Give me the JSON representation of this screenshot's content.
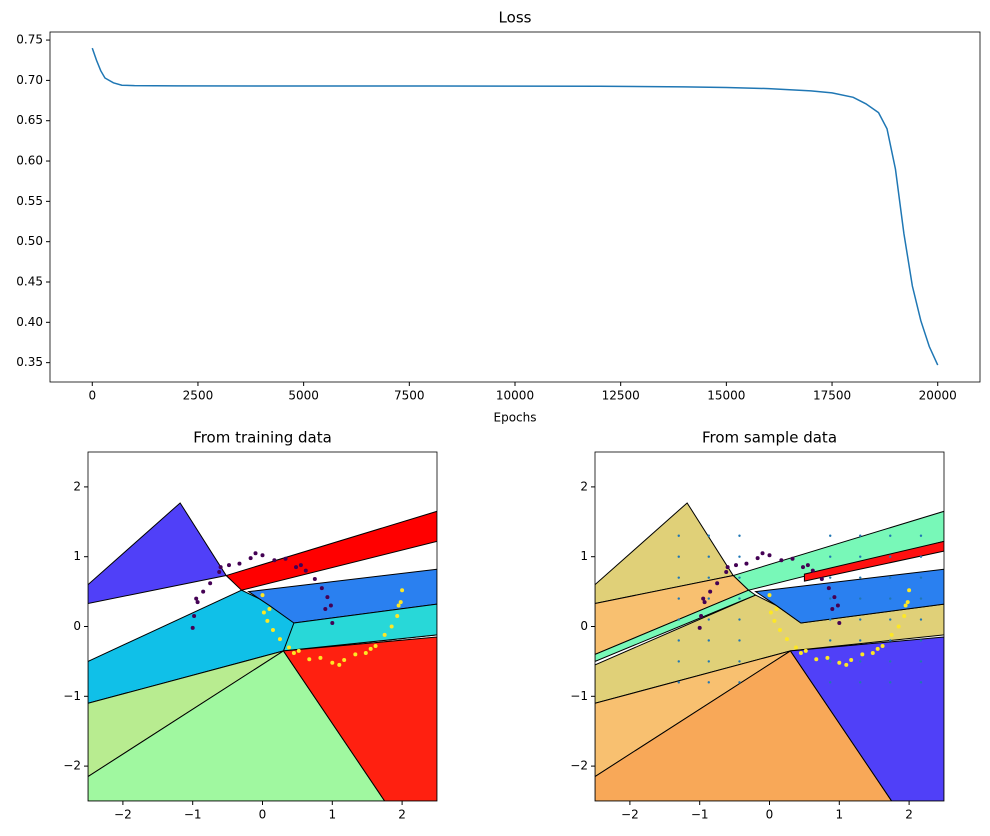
{
  "chart_data": [
    {
      "type": "line",
      "title": "Loss",
      "x_label": "Epochs",
      "color": "#1f77b4",
      "x": [
        0,
        100,
        200,
        300,
        500,
        700,
        1000,
        2000,
        4000,
        6000,
        8000,
        10000,
        12000,
        14000,
        15000,
        16000,
        17000,
        17500,
        18000,
        18300,
        18600,
        18800,
        19000,
        19200,
        19400,
        19600,
        19800,
        20000
      ],
      "values": [
        0.74,
        0.725,
        0.712,
        0.703,
        0.697,
        0.694,
        0.6935,
        0.6932,
        0.6931,
        0.6931,
        0.693,
        0.6929,
        0.6927,
        0.692,
        0.6912,
        0.6898,
        0.687,
        0.6845,
        0.679,
        0.671,
        0.66,
        0.64,
        0.59,
        0.51,
        0.445,
        0.402,
        0.37,
        0.347
      ],
      "xlim": [
        -1000,
        21000
      ],
      "ylim": [
        0.326,
        0.76
      ],
      "xticks": [
        0,
        2500,
        5000,
        7500,
        10000,
        12500,
        15000,
        17500,
        20000
      ],
      "yticks": [
        0.35,
        {
          "value": 0.4,
          "label": "0.40"
        },
        0.45,
        {
          "value": 0.5,
          "label": "0.50"
        },
        0.55,
        {
          "value": 0.6,
          "label": "0.60"
        },
        0.65,
        {
          "value": 0.7,
          "label": "0.70"
        },
        0.75
      ]
    },
    {
      "type": "scatter",
      "title": "From training data",
      "xlim": [
        -2.5,
        2.5
      ],
      "ylim": [
        -2.5,
        2.5
      ],
      "xticks": [
        {
          "value": -2,
          "label": "−2"
        },
        {
          "value": -1,
          "label": "−1"
        },
        0,
        1,
        2
      ],
      "yticks": [
        {
          "value": -2,
          "label": "−2"
        },
        {
          "value": -1,
          "label": "−1"
        },
        0,
        1,
        2
      ],
      "regions": [
        {
          "color": "#10c0e8",
          "points": [
            [
              -2.5,
              -0.5
            ],
            [
              -0.3,
              0.52
            ],
            [
              0.05,
              0.35
            ],
            [
              0.4,
              0.2
            ],
            [
              2.5,
              0.32
            ],
            [
              2.5,
              -0.12
            ],
            [
              0.3,
              -0.35
            ],
            [
              -2.5,
              -1.1
            ]
          ]
        },
        {
          "color": "#5040f8",
          "points": [
            [
              -2.5,
              0.6
            ],
            [
              -1.18,
              1.77
            ],
            [
              -0.52,
              0.73
            ],
            [
              -2.5,
              0.33
            ]
          ]
        },
        {
          "color": "#ff0000",
          "points": [
            [
              -0.52,
              0.73
            ],
            [
              2.5,
              1.65
            ],
            [
              2.5,
              1.22
            ],
            [
              -0.3,
              0.52
            ]
          ]
        },
        {
          "color": "#2a80f0",
          "points": [
            [
              -0.2,
              0.5
            ],
            [
              2.5,
              0.82
            ],
            [
              2.5,
              0.32
            ],
            [
              0.45,
              0.05
            ],
            [
              0.1,
              0.3
            ]
          ]
        },
        {
          "color": "#28d8d8",
          "points": [
            [
              0.45,
              0.05
            ],
            [
              2.5,
              0.32
            ],
            [
              2.5,
              -0.12
            ],
            [
              0.3,
              -0.35
            ]
          ]
        },
        {
          "color": "#b8ec90",
          "points": [
            [
              -2.5,
              -1.1
            ],
            [
              0.3,
              -0.35
            ],
            [
              -2.5,
              -2.15
            ]
          ]
        },
        {
          "color": "#a0f8a0",
          "points": [
            [
              -2.5,
              -2.15
            ],
            [
              0.3,
              -0.35
            ],
            [
              1.75,
              -2.5
            ],
            [
              -2.5,
              -2.5
            ]
          ]
        },
        {
          "color": "#ff2010",
          "points": [
            [
              0.3,
              -0.35
            ],
            [
              2.5,
              -0.15
            ],
            [
              2.5,
              -2.5
            ],
            [
              1.75,
              -2.5
            ]
          ]
        }
      ],
      "series": [
        {
          "color": "#440154",
          "x": [
            1.0,
            0.98,
            0.93,
            0.85,
            0.75,
            0.62,
            0.48,
            0.33,
            0.17,
            0.0,
            -0.17,
            -0.33,
            -0.48,
            -0.62,
            -0.75,
            -0.85,
            -0.93,
            -0.98,
            -1.0,
            0.9,
            0.55,
            -0.1,
            -0.6,
            -0.95
          ],
          "values": [
            0.05,
            0.3,
            0.42,
            0.55,
            0.68,
            0.8,
            0.85,
            0.97,
            0.95,
            1.02,
            0.98,
            0.9,
            0.88,
            0.78,
            0.62,
            0.5,
            0.35,
            0.15,
            -0.02,
            0.25,
            0.88,
            1.05,
            0.85,
            0.4
          ]
        },
        {
          "color": "#fde725",
          "x": [
            0.0,
            0.02,
            0.07,
            0.15,
            0.25,
            0.38,
            0.52,
            0.67,
            0.83,
            1.0,
            1.17,
            1.33,
            1.48,
            1.62,
            1.75,
            1.85,
            1.93,
            1.98,
            2.0,
            0.1,
            0.45,
            1.1,
            1.55,
            1.95
          ],
          "values": [
            0.45,
            0.2,
            0.08,
            -0.05,
            -0.18,
            -0.3,
            -0.35,
            -0.47,
            -0.45,
            -0.52,
            -0.48,
            -0.4,
            -0.38,
            -0.28,
            -0.12,
            0.0,
            0.15,
            0.35,
            0.52,
            0.25,
            -0.38,
            -0.55,
            -0.32,
            0.3
          ]
        }
      ]
    },
    {
      "type": "scatter",
      "title": "From sample data",
      "xlim": [
        -2.5,
        2.5
      ],
      "ylim": [
        -2.5,
        2.5
      ],
      "xticks": [
        {
          "value": -2,
          "label": "−2"
        },
        {
          "value": -1,
          "label": "−1"
        },
        0,
        1,
        2
      ],
      "yticks": [
        {
          "value": -2,
          "label": "−2"
        },
        {
          "value": -1,
          "label": "−1"
        },
        0,
        1,
        2
      ],
      "regions": [
        {
          "color": "#e0d078",
          "points": [
            [
              -2.5,
              -0.55
            ],
            [
              -0.2,
              0.45
            ],
            [
              0.1,
              0.3
            ],
            [
              0.45,
              0.05
            ],
            [
              2.5,
              0.32
            ],
            [
              2.5,
              -0.12
            ],
            [
              0.3,
              -0.35
            ],
            [
              -2.5,
              -1.1
            ]
          ]
        },
        {
          "color": "#e0d078",
          "points": [
            [
              -2.5,
              0.6
            ],
            [
              -1.18,
              1.77
            ],
            [
              -0.52,
              0.73
            ],
            [
              -2.5,
              0.33
            ]
          ]
        },
        {
          "color": "#78f8b8",
          "points": [
            [
              -0.52,
              0.73
            ],
            [
              2.5,
              1.65
            ],
            [
              2.5,
              1.22
            ],
            [
              -0.3,
              0.52
            ]
          ]
        },
        {
          "color": "#ff1010",
          "points": [
            [
              0.5,
              0.75
            ],
            [
              2.5,
              1.22
            ],
            [
              2.5,
              1.08
            ],
            [
              0.5,
              0.65
            ]
          ]
        },
        {
          "color": "#f8c070",
          "points": [
            [
              -2.5,
              0.33
            ],
            [
              -0.52,
              0.73
            ],
            [
              -0.3,
              0.52
            ],
            [
              -2.5,
              -0.4
            ]
          ]
        },
        {
          "color": "#78f8b8",
          "points": [
            [
              -2.5,
              -0.4
            ],
            [
              -0.3,
              0.52
            ],
            [
              -0.2,
              0.45
            ],
            [
              -2.5,
              -0.5
            ]
          ]
        },
        {
          "color": "#2a80f0",
          "points": [
            [
              -0.2,
              0.5
            ],
            [
              2.5,
              0.82
            ],
            [
              2.5,
              0.32
            ],
            [
              0.45,
              0.05
            ],
            [
              0.1,
              0.3
            ]
          ]
        },
        {
          "color": "#f8c070",
          "points": [
            [
              -2.5,
              -1.1
            ],
            [
              0.3,
              -0.35
            ],
            [
              -2.5,
              -2.15
            ]
          ]
        },
        {
          "color": "#f8a858",
          "points": [
            [
              -2.5,
              -2.15
            ],
            [
              0.3,
              -0.35
            ],
            [
              1.75,
              -2.5
            ],
            [
              -2.5,
              -2.5
            ]
          ]
        },
        {
          "color": "#5040f8",
          "points": [
            [
              0.3,
              -0.35
            ],
            [
              2.5,
              -0.15
            ],
            [
              2.5,
              -2.5
            ],
            [
              1.75,
              -2.5
            ]
          ]
        }
      ],
      "series": [
        {
          "color": "#1f77b4",
          "size": 1.2,
          "x": [
            -1.3,
            -1.3,
            -1.3,
            -1.3,
            -1.3,
            -1.3,
            -1.3,
            -1.3,
            -0.87,
            -0.87,
            -0.87,
            -0.87,
            -0.87,
            -0.87,
            -0.87,
            -0.87,
            -0.43,
            -0.43,
            -0.43,
            -0.43,
            -0.43,
            -0.43,
            -0.43,
            -0.43,
            0.87,
            0.87,
            0.87,
            0.87,
            0.87,
            0.87,
            0.87,
            0.87,
            1.3,
            1.3,
            1.3,
            1.3,
            1.3,
            1.3,
            1.3,
            1.3,
            1.73,
            1.73,
            1.73,
            1.73,
            1.73,
            1.73,
            1.73,
            1.73,
            2.17,
            2.17,
            2.17,
            2.17,
            2.17,
            2.17,
            2.17,
            2.17
          ],
          "values": [
            -0.8,
            -0.5,
            -0.2,
            0.1,
            0.4,
            0.7,
            1.0,
            1.3,
            -0.8,
            -0.5,
            -0.2,
            0.1,
            0.4,
            0.7,
            1.0,
            1.3,
            -0.8,
            -0.5,
            -0.2,
            0.1,
            0.4,
            0.7,
            1.0,
            1.3,
            -0.8,
            -0.5,
            -0.2,
            0.1,
            0.4,
            0.7,
            1.0,
            1.3,
            -0.8,
            -0.5,
            -0.2,
            0.1,
            0.4,
            0.7,
            1.0,
            1.3,
            -0.8,
            -0.5,
            -0.2,
            0.1,
            0.4,
            0.7,
            1.0,
            1.3,
            -0.8,
            -0.5,
            -0.2,
            0.1,
            0.4,
            0.7,
            1.0,
            1.3
          ]
        },
        {
          "color": "#440154",
          "x": [
            1.0,
            0.98,
            0.93,
            0.85,
            0.75,
            0.62,
            0.48,
            0.33,
            0.17,
            0.0,
            -0.17,
            -0.33,
            -0.48,
            -0.62,
            -0.75,
            -0.85,
            -0.93,
            -0.98,
            -1.0,
            0.9,
            0.55,
            -0.1,
            -0.6,
            -0.95
          ],
          "values": [
            0.05,
            0.3,
            0.42,
            0.55,
            0.68,
            0.8,
            0.85,
            0.97,
            0.95,
            1.02,
            0.98,
            0.9,
            0.88,
            0.78,
            0.62,
            0.5,
            0.35,
            0.15,
            -0.02,
            0.25,
            0.88,
            1.05,
            0.85,
            0.4
          ]
        },
        {
          "color": "#fde725",
          "x": [
            0.0,
            0.02,
            0.07,
            0.15,
            0.25,
            0.38,
            0.52,
            0.67,
            0.83,
            1.0,
            1.17,
            1.33,
            1.48,
            1.62,
            1.75,
            1.85,
            1.93,
            1.98,
            2.0,
            0.1,
            0.45,
            1.1,
            1.55,
            1.95
          ],
          "values": [
            0.45,
            0.2,
            0.08,
            -0.05,
            -0.18,
            -0.3,
            -0.35,
            -0.47,
            -0.45,
            -0.52,
            -0.48,
            -0.4,
            -0.38,
            -0.28,
            -0.12,
            0.0,
            0.15,
            0.35,
            0.52,
            0.25,
            -0.38,
            -0.55,
            -0.32,
            0.3
          ]
        }
      ]
    }
  ]
}
